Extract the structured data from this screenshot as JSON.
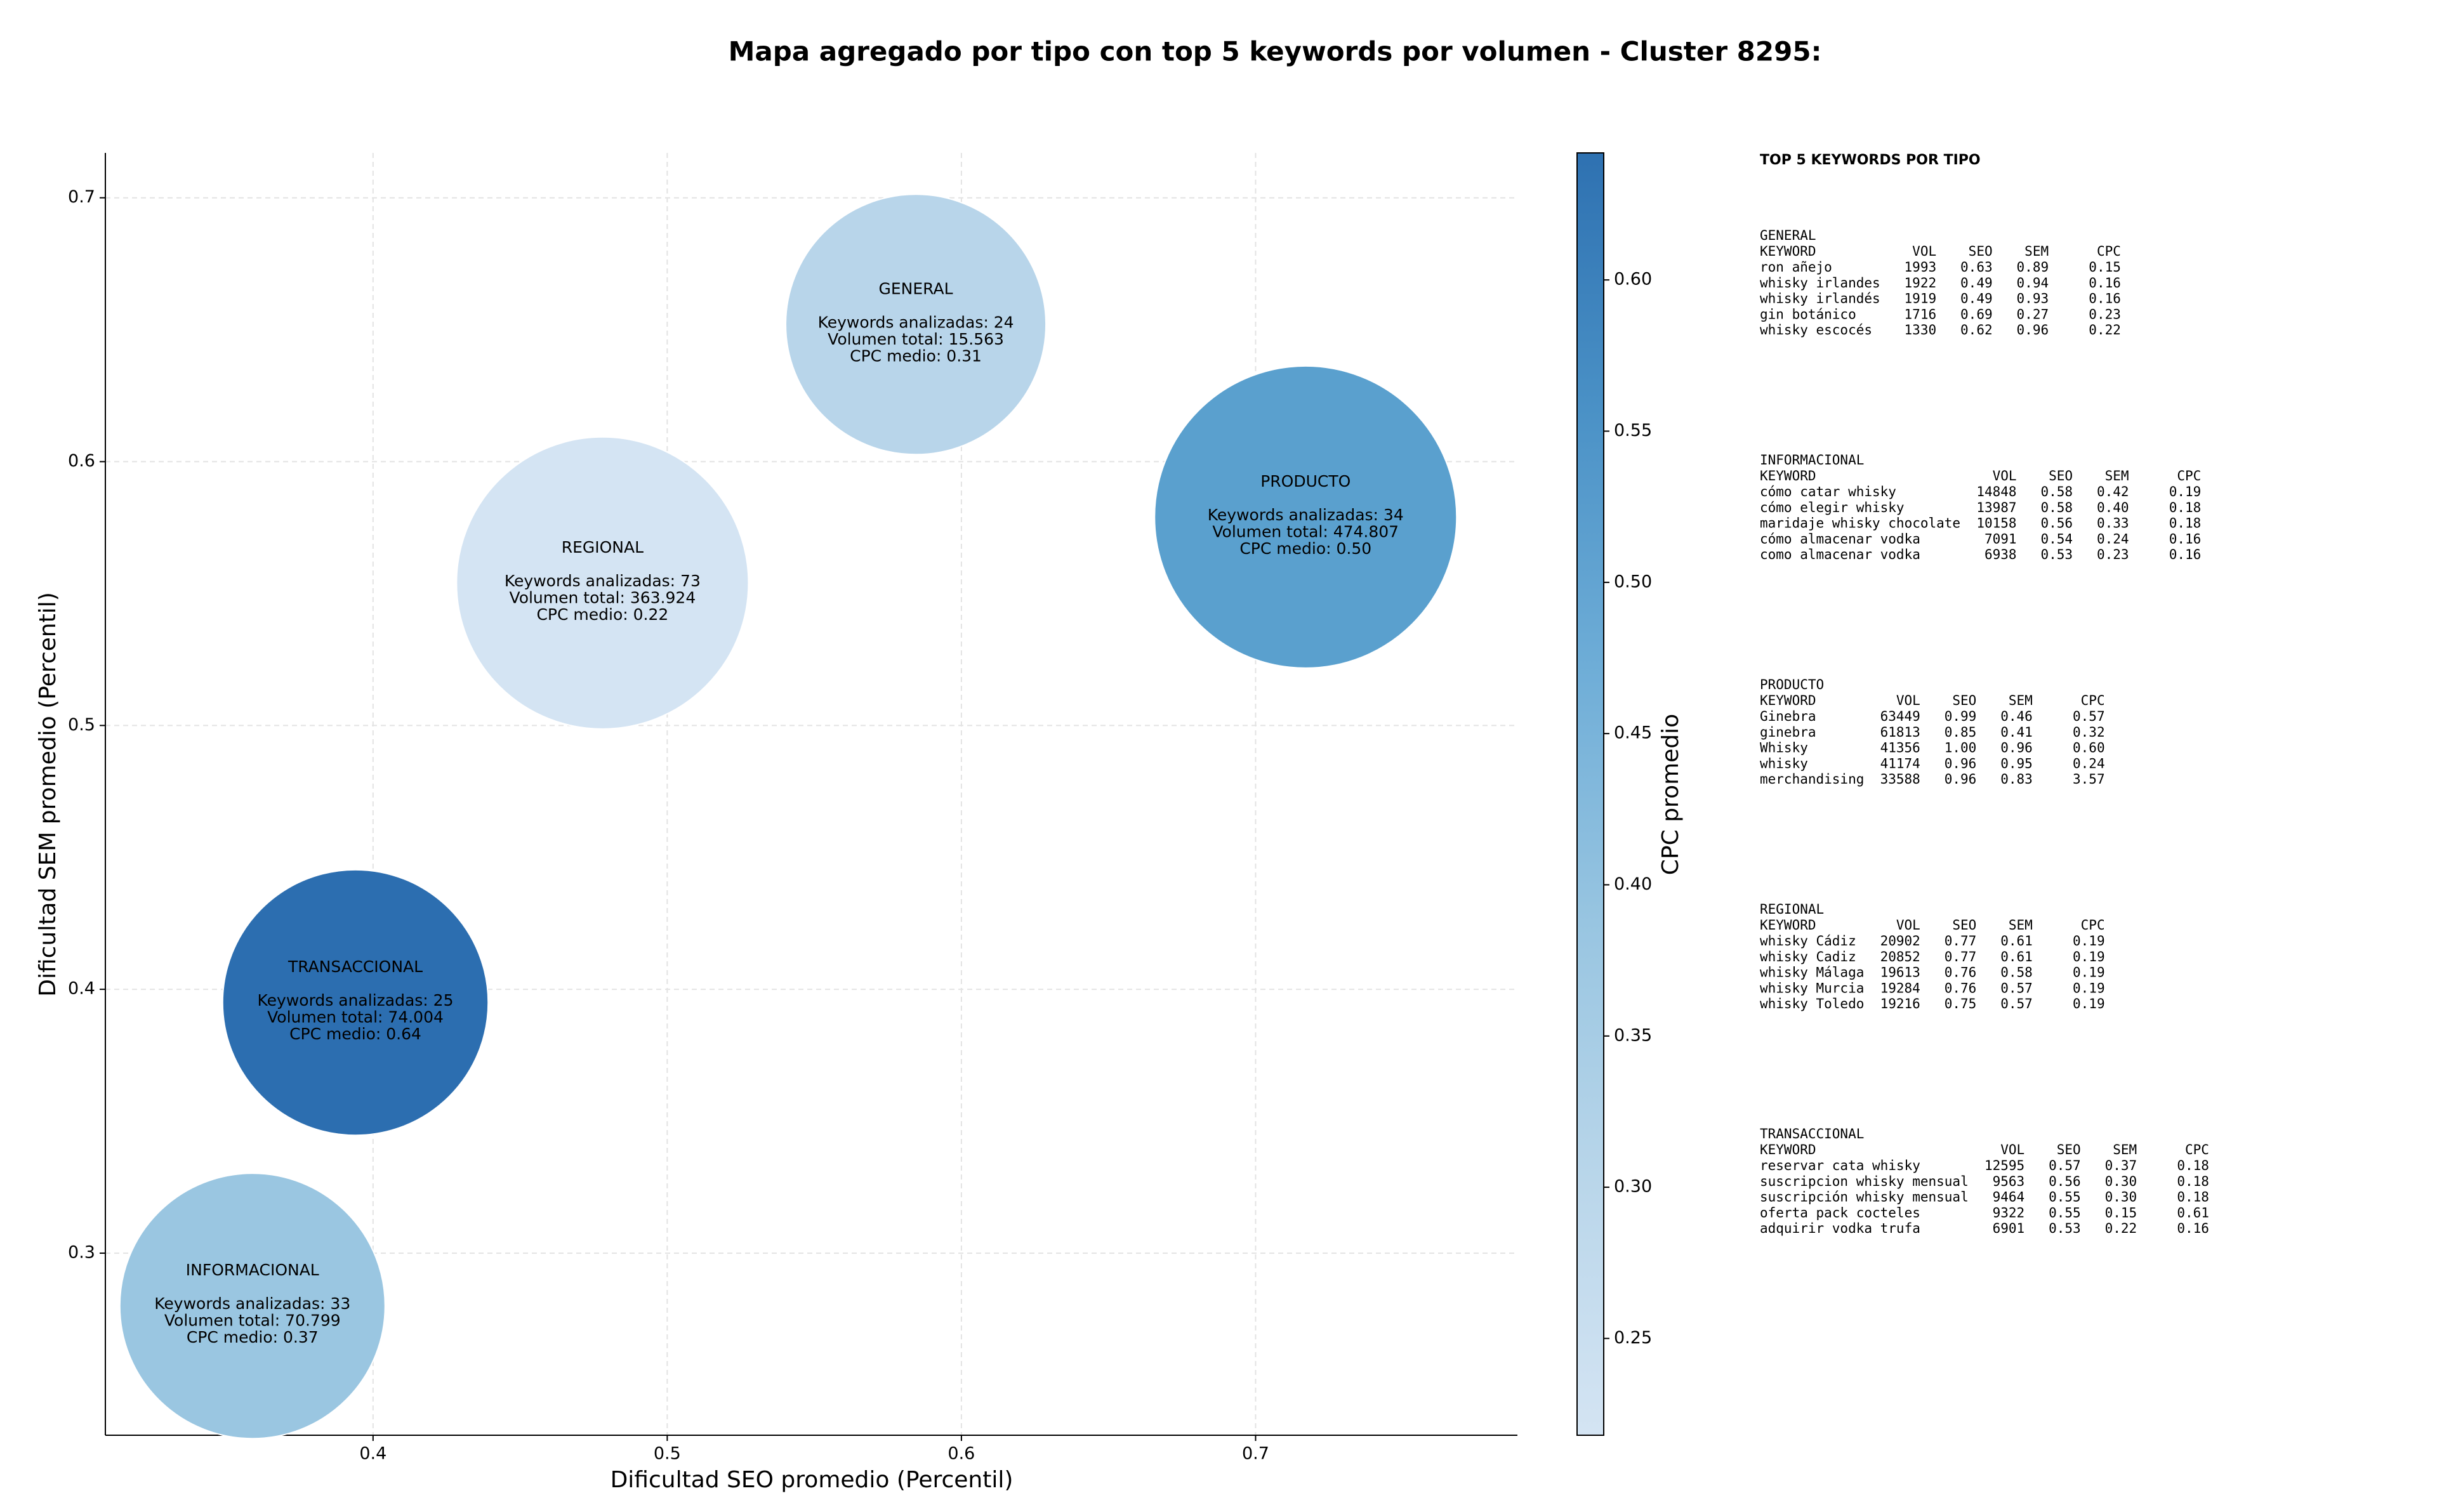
{
  "chart_data": {
    "type": "bubble",
    "title": "Mapa agregado por tipo con top 5 keywords por volumen - Cluster 8295:",
    "xlabel": "Dificultad SEO promedio (Percentil)",
    "ylabel": "Dificultad SEM promedio (Percentil)",
    "categories": [
      "GENERAL",
      "INFORMACIONAL",
      "PRODUCTO",
      "REGIONAL",
      "TRANSACCIONAL"
    ],
    "x": [
      0.5845,
      0.359,
      0.717,
      0.478,
      0.394
    ],
    "values": [
      0.652,
      0.28,
      0.579,
      0.554,
      0.395
    ],
    "sizes": [
      15563,
      70799,
      474807,
      363924,
      74004
    ],
    "cpc": [
      0.31,
      0.37,
      0.5,
      0.22,
      0.64
    ],
    "colors": [
      "#b8d5ea",
      "#9ac6e1",
      "#5aa0ce",
      "#d4e4f3",
      "#2c6eb0"
    ],
    "annotations": [
      [
        "Keywords analizadas: 24",
        "Volumen total: 15.563",
        "CPC medio: 0.31"
      ],
      [
        "Keywords analizadas: 33",
        "Volumen total: 70.799",
        "CPC medio: 0.37"
      ],
      [
        "Keywords analizadas: 34",
        "Volumen total: 474.807",
        "CPC medio: 0.50"
      ],
      [
        "Keywords analizadas: 73",
        "Volumen total: 363.924",
        "CPC medio: 0.22"
      ],
      [
        "Keywords analizadas: 25",
        "Volumen total: 74.004",
        "CPC medio: 0.64"
      ]
    ],
    "xlim": [
      0.309,
      0.789
    ],
    "ylim": [
      0.231,
      0.717
    ],
    "xticks": [
      0.4,
      0.5,
      0.6,
      0.7
    ],
    "yticks": [
      0.3,
      0.4,
      0.5,
      0.6,
      0.7
    ],
    "grid": true,
    "colorbar": {
      "label": "CPC promedio",
      "lim": [
        0.218,
        0.642
      ],
      "ticks": [
        0.25,
        {
          "value": 0.3,
          "label": "0.30"
        },
        0.35,
        {
          "value": 0.4,
          "label": "0.40"
        },
        0.45,
        {
          "value": 0.5,
          "label": "0.50"
        },
        0.55,
        {
          "value": 0.6,
          "label": "0.60"
        }
      ],
      "colors": [
        "#d4e4f3",
        "#b9d6ea",
        "#98c5e1",
        "#6eadd7",
        "#4a91c6",
        "#2e71b1"
      ]
    }
  },
  "side_panel": {
    "title": "TOP 5 KEYWORDS POR TIPO",
    "groups": [
      {
        "name": "GENERAL",
        "header": [
          "KEYWORD",
          "VOL",
          "SEO",
          "SEM",
          "CPC"
        ],
        "rows": [
          [
            "ron añejo",
            "1993",
            "0.63",
            "0.89",
            "0.15"
          ],
          [
            "whisky irlandes",
            "1922",
            "0.49",
            "0.94",
            "0.16"
          ],
          [
            "whisky irlandés",
            "1919",
            "0.49",
            "0.93",
            "0.16"
          ],
          [
            "gin botánico",
            "1716",
            "0.69",
            "0.27",
            "0.23"
          ],
          [
            "whisky escocés",
            "1330",
            "0.62",
            "0.96",
            "0.22"
          ]
        ]
      },
      {
        "name": "INFORMACIONAL",
        "header": [
          "KEYWORD",
          "VOL",
          "SEO",
          "SEM",
          "CPC"
        ],
        "rows": [
          [
            "cómo catar whisky",
            "14848",
            "0.58",
            "0.42",
            "0.19"
          ],
          [
            "cómo elegir whisky",
            "13987",
            "0.58",
            "0.40",
            "0.18"
          ],
          [
            "maridaje whisky chocolate",
            "10158",
            "0.56",
            "0.33",
            "0.18"
          ],
          [
            "cómo almacenar vodka",
            "7091",
            "0.54",
            "0.24",
            "0.16"
          ],
          [
            "como almacenar vodka",
            "6938",
            "0.53",
            "0.23",
            "0.16"
          ]
        ]
      },
      {
        "name": "PRODUCTO",
        "header": [
          "KEYWORD",
          "VOL",
          "SEO",
          "SEM",
          "CPC"
        ],
        "rows": [
          [
            "Ginebra",
            "63449",
            "0.99",
            "0.46",
            "0.57"
          ],
          [
            "ginebra",
            "61813",
            "0.85",
            "0.41",
            "0.32"
          ],
          [
            "Whisky",
            "41356",
            "1.00",
            "0.96",
            "0.60"
          ],
          [
            "whisky",
            "41174",
            "0.96",
            "0.95",
            "0.24"
          ],
          [
            "merchandising",
            "33588",
            "0.96",
            "0.83",
            "3.57"
          ]
        ]
      },
      {
        "name": "REGIONAL",
        "header": [
          "KEYWORD",
          "VOL",
          "SEO",
          "SEM",
          "CPC"
        ],
        "rows": [
          [
            "whisky Cádiz",
            "20902",
            "0.77",
            "0.61",
            "0.19"
          ],
          [
            "whisky Cadiz",
            "20852",
            "0.77",
            "0.61",
            "0.19"
          ],
          [
            "whisky Málaga",
            "19613",
            "0.76",
            "0.58",
            "0.19"
          ],
          [
            "whisky Murcia",
            "19284",
            "0.76",
            "0.57",
            "0.19"
          ],
          [
            "whisky Toledo",
            "19216",
            "0.75",
            "0.57",
            "0.19"
          ]
        ]
      },
      {
        "name": "TRANSACCIONAL",
        "header": [
          "KEYWORD",
          "VOL",
          "SEO",
          "SEM",
          "CPC"
        ],
        "rows": [
          [
            "reservar cata whisky",
            "12595",
            "0.57",
            "0.37",
            "0.18"
          ],
          [
            "suscripcion whisky mensual",
            "9563",
            "0.56",
            "0.30",
            "0.18"
          ],
          [
            "suscripción whisky mensual",
            "9464",
            "0.55",
            "0.30",
            "0.18"
          ],
          [
            "oferta pack cocteles",
            "9322",
            "0.55",
            "0.15",
            "0.61"
          ],
          [
            "adquirir vodka trufa",
            "6901",
            "0.53",
            "0.22",
            "0.16"
          ]
        ]
      }
    ]
  }
}
